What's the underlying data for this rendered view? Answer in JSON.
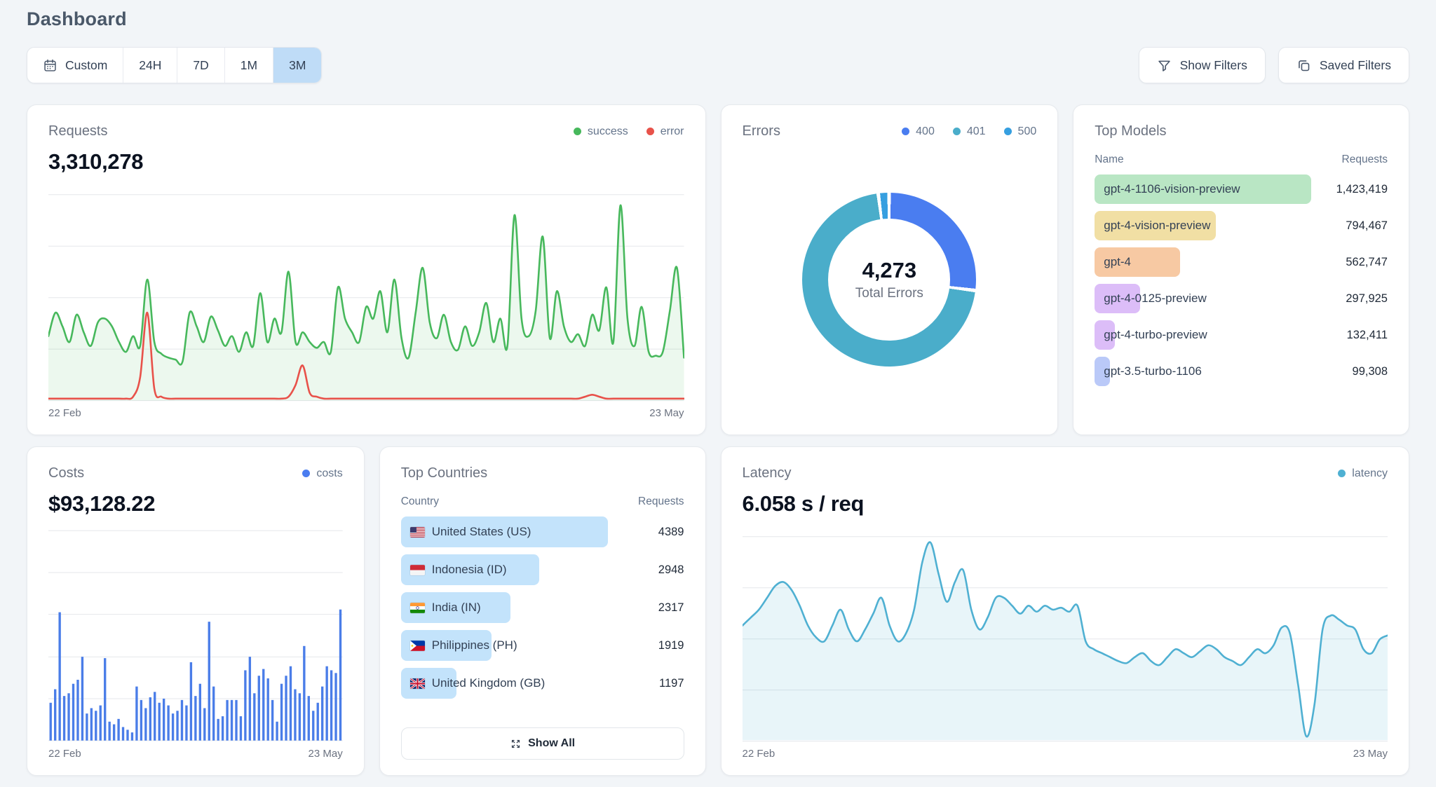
{
  "page": {
    "title": "Dashboard"
  },
  "toolbar": {
    "time_ranges": [
      {
        "label": "Custom",
        "icon": "calendar",
        "selected": false
      },
      {
        "label": "24H",
        "selected": false
      },
      {
        "label": "7D",
        "selected": false
      },
      {
        "label": "1M",
        "selected": false
      },
      {
        "label": "3M",
        "selected": true
      }
    ],
    "selected_bg": "#bfdcf7",
    "show_filters_label": "Show Filters",
    "saved_filters_label": "Saved Filters"
  },
  "cards": {
    "requests": {
      "title": "Requests",
      "value": "3,310,278",
      "legend": [
        {
          "label": "success",
          "color": "#47b85c"
        },
        {
          "label": "error",
          "color": "#e8524a"
        }
      ],
      "x_start": "22 Feb",
      "x_end": "23 May"
    },
    "errors": {
      "title": "Errors",
      "legend": [
        {
          "label": "400",
          "color": "#4a7df0"
        },
        {
          "label": "401",
          "color": "#4aadca"
        },
        {
          "label": "500",
          "color": "#369fe0"
        }
      ],
      "center_value": "4,273",
      "center_label": "Total Errors"
    },
    "top_models": {
      "title": "Top Models",
      "col_name": "Name",
      "col_requests": "Requests",
      "rows": [
        {
          "name": "gpt-4-1106-vision-preview",
          "requests": "1,423,419",
          "pct": 100,
          "color": "#b9e6c4"
        },
        {
          "name": "gpt-4-vision-preview",
          "requests": "794,467",
          "pct": 55.8,
          "color": "#f1dfa4"
        },
        {
          "name": "gpt-4",
          "requests": "562,747",
          "pct": 39.5,
          "color": "#f7c9a3"
        },
        {
          "name": "gpt-4-0125-preview",
          "requests": "297,925",
          "pct": 20.9,
          "color": "#dcbdf8"
        },
        {
          "name": "gpt-4-turbo-preview",
          "requests": "132,411",
          "pct": 9.3,
          "color": "#dcbdf8"
        },
        {
          "name": "gpt-3.5-turbo-1106",
          "requests": "99,308",
          "pct": 7.0,
          "color": "#bac9f8"
        }
      ]
    },
    "costs": {
      "title": "Costs",
      "value": "$93,128.22",
      "legend": [
        {
          "label": "costs",
          "color": "#4a7df0"
        }
      ],
      "x_start": "22 Feb",
      "x_end": "23 May"
    },
    "top_countries": {
      "title": "Top Countries",
      "col_country": "Country",
      "col_requests": "Requests",
      "bar_color": "#c3e3fb",
      "rows": [
        {
          "label": "United States (US)",
          "flag": "us",
          "requests": "4389",
          "pct": 100
        },
        {
          "label": "Indonesia (ID)",
          "flag": "id",
          "requests": "2948",
          "pct": 67
        },
        {
          "label": "India (IN)",
          "flag": "in",
          "requests": "2317",
          "pct": 53
        },
        {
          "label": "Philippines (PH)",
          "flag": "ph",
          "requests": "1919",
          "pct": 44
        },
        {
          "label": "United Kingdom (GB)",
          "flag": "gb",
          "requests": "1197",
          "pct": 27
        }
      ],
      "show_all_label": "Show All"
    },
    "latency": {
      "title": "Latency",
      "value": "6.058 s / req",
      "legend": [
        {
          "label": "latency",
          "color": "#4fb0d2"
        }
      ],
      "x_start": "22 Feb",
      "x_end": "23 May"
    }
  },
  "chart_data": [
    {
      "id": "requests",
      "type": "line",
      "title": "Requests",
      "x_range": [
        "22 Feb",
        "23 May"
      ],
      "gridlines": 5,
      "ylim": [
        0,
        105
      ],
      "legend_position": "top-right",
      "series": [
        {
          "name": "success",
          "color": "#47b85c",
          "fill": "rgba(71,184,92,0.10)",
          "values": [
            33,
            45,
            38,
            30,
            44,
            35,
            28,
            40,
            42,
            38,
            30,
            25,
            33,
            28,
            62,
            30,
            24,
            22,
            21,
            20,
            45,
            38,
            30,
            43,
            36,
            28,
            33,
            25,
            35,
            28,
            55,
            30,
            42,
            35,
            66,
            30,
            35,
            30,
            27,
            30,
            25,
            58,
            42,
            35,
            30,
            48,
            42,
            56,
            35,
            62,
            32,
            22,
            45,
            68,
            40,
            32,
            44,
            30,
            26,
            38,
            28,
            35,
            50,
            30,
            42,
            28,
            95,
            42,
            33,
            46,
            84,
            32,
            56,
            38,
            30,
            34,
            28,
            44,
            36,
            58,
            30,
            100,
            42,
            28,
            48,
            25,
            23,
            25,
            46,
            68,
            22
          ]
        },
        {
          "name": "error",
          "color": "#e8524a",
          "fill": "none",
          "values": [
            1,
            1,
            1,
            1,
            1,
            1,
            1,
            1,
            1,
            1,
            1,
            1,
            2,
            12,
            45,
            6,
            2,
            1,
            1,
            1,
            1,
            1,
            1,
            1,
            1,
            1,
            1,
            1,
            1,
            1,
            1,
            1,
            1,
            1,
            2,
            8,
            18,
            4,
            2,
            1,
            1,
            1,
            1,
            1,
            1,
            1,
            1,
            1,
            1,
            1,
            1,
            1,
            1,
            1,
            1,
            1,
            1,
            1,
            1,
            1,
            1,
            1,
            1,
            1,
            1,
            1,
            1,
            1,
            1,
            1,
            1,
            1,
            1,
            1,
            1,
            1,
            2,
            3,
            2,
            1,
            1,
            1,
            1,
            1,
            1,
            1,
            1,
            1,
            1,
            1,
            1
          ]
        }
      ]
    },
    {
      "id": "errors",
      "type": "donut",
      "title": "Errors",
      "total": 4273,
      "center_label": "Total Errors",
      "segments": [
        {
          "label": "400",
          "pct": 27,
          "color": "#4a7df0"
        },
        {
          "label": "401",
          "pct": 71,
          "color": "#4aadca"
        },
        {
          "label": "500",
          "pct": 2,
          "color": "#369fe0"
        }
      ]
    },
    {
      "id": "top_models",
      "type": "table",
      "title": "Top Models",
      "columns": [
        "Name",
        "Requests"
      ],
      "rows": [
        [
          "gpt-4-1106-vision-preview",
          1423419
        ],
        [
          "gpt-4-vision-preview",
          794467
        ],
        [
          "gpt-4",
          562747
        ],
        [
          "gpt-4-0125-preview",
          297925
        ],
        [
          "gpt-4-turbo-preview",
          132411
        ],
        [
          "gpt-3.5-turbo-1106",
          99308
        ]
      ]
    },
    {
      "id": "costs",
      "type": "bar",
      "title": "Costs",
      "total_label": "$93,128.22",
      "x_range": [
        "22 Feb",
        "23 May"
      ],
      "gridlines": 6,
      "ylim": [
        0,
        100
      ],
      "color": "#4a7de8",
      "values": [
        28,
        38,
        95,
        33,
        35,
        42,
        45,
        62,
        20,
        24,
        22,
        26,
        61,
        14,
        12,
        16,
        10,
        8,
        6,
        40,
        30,
        24,
        32,
        36,
        28,
        31,
        26,
        20,
        22,
        30,
        26,
        58,
        33,
        42,
        24,
        88,
        40,
        16,
        18,
        30,
        30,
        30,
        18,
        52,
        62,
        35,
        48,
        53,
        46,
        30,
        14,
        42,
        48,
        55,
        38,
        35,
        70,
        33,
        22,
        28,
        40,
        55,
        52,
        50,
        97
      ]
    },
    {
      "id": "top_countries",
      "type": "table",
      "title": "Top Countries",
      "columns": [
        "Country",
        "Requests"
      ],
      "rows": [
        [
          "United States (US)",
          4389
        ],
        [
          "Indonesia (ID)",
          2948
        ],
        [
          "India (IN)",
          2317
        ],
        [
          "Philippines (PH)",
          1919
        ],
        [
          "United Kingdom (GB)",
          1197
        ]
      ]
    },
    {
      "id": "latency",
      "type": "line",
      "title": "Latency",
      "total_label": "6.058 s / req",
      "x_range": [
        "22 Feb",
        "23 May"
      ],
      "gridlines": 5,
      "ylim": [
        0,
        105
      ],
      "series": [
        {
          "name": "latency",
          "color": "#4fb0d2",
          "fill": "rgba(79,176,210,0.13)",
          "values": [
            58,
            62,
            66,
            72,
            78,
            80,
            76,
            68,
            58,
            52,
            50,
            58,
            66,
            56,
            50,
            56,
            64,
            72,
            58,
            50,
            54,
            66,
            90,
            100,
            84,
            70,
            80,
            86,
            66,
            56,
            62,
            72,
            72,
            68,
            64,
            68,
            65,
            68,
            66,
            67,
            65,
            68,
            50,
            46,
            44,
            42,
            40,
            39,
            42,
            44,
            40,
            38,
            42,
            46,
            44,
            42,
            45,
            48,
            46,
            42,
            40,
            38,
            42,
            46,
            44,
            48,
            57,
            54,
            28,
            2,
            18,
            56,
            63,
            61,
            58,
            56,
            46,
            44,
            51,
            53
          ]
        }
      ]
    }
  ]
}
